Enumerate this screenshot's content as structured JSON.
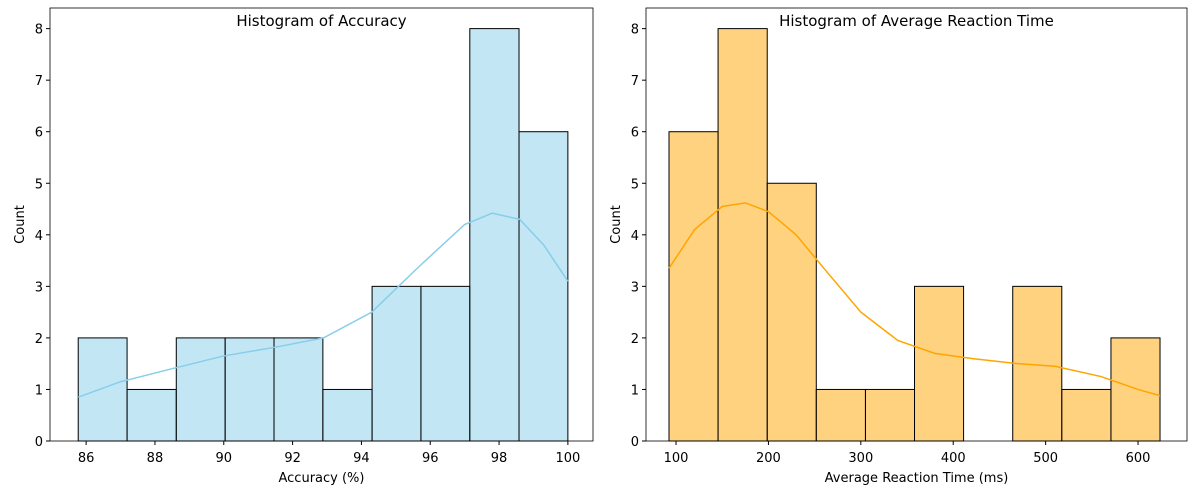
{
  "chart_data": [
    {
      "type": "histogram",
      "title": "Histogram of Accuracy",
      "xlabel": "Accuracy (%)",
      "ylabel": "Count",
      "bins": [
        85.77,
        87.19,
        88.62,
        90.04,
        91.46,
        92.88,
        94.31,
        95.73,
        97.15,
        98.58,
        100
      ],
      "values": [
        2,
        1,
        2,
        2,
        2,
        1,
        3,
        3,
        8,
        6
      ],
      "color": "#87ceeb",
      "kde": {
        "x": [
          85.77,
          87,
          88.6,
          90,
          91.5,
          92.9,
          94.3,
          95.7,
          97,
          97.8,
          98.6,
          99.3,
          100
        ],
        "y": [
          0.85,
          1.15,
          1.42,
          1.65,
          1.82,
          2.0,
          2.5,
          3.4,
          4.2,
          4.42,
          4.3,
          3.8,
          3.1
        ]
      },
      "xlim": [
        84.95,
        100.73
      ],
      "ylim": [
        0,
        8.4
      ],
      "xticks": [
        86,
        88,
        90,
        92,
        94,
        96,
        98,
        100
      ],
      "yticks": [
        0,
        1,
        2,
        3,
        4,
        5,
        6,
        7,
        8
      ]
    },
    {
      "type": "histogram",
      "title": "Histogram of Average Reaction Time",
      "xlabel": "Average Reaction Time (ms)",
      "ylabel": "Count",
      "bins": [
        92.4,
        145.5,
        198.7,
        251.8,
        305.0,
        358.1,
        411.2,
        464.4,
        517.5,
        570.7,
        623.8
      ],
      "values": [
        6,
        8,
        5,
        1,
        1,
        3,
        0,
        3,
        1,
        2
      ],
      "color": "#ffa500",
      "kde": {
        "x": [
          92.4,
          120,
          150,
          175,
          200,
          230,
          260,
          300,
          340,
          380,
          420,
          470,
          510,
          560,
          600,
          623.8
        ],
        "y": [
          3.35,
          4.1,
          4.55,
          4.62,
          4.45,
          4.0,
          3.35,
          2.5,
          1.95,
          1.7,
          1.6,
          1.5,
          1.45,
          1.25,
          1.0,
          0.88
        ]
      },
      "xlim": [
        67.5,
        653
      ],
      "ylim": [
        0,
        8.4
      ],
      "xticks": [
        100,
        200,
        300,
        400,
        500,
        600
      ],
      "yticks": [
        0,
        1,
        2,
        3,
        4,
        5,
        6,
        7,
        8
      ]
    }
  ]
}
